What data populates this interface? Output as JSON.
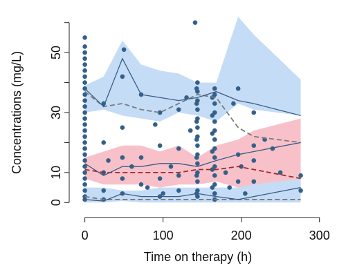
{
  "chart_data": {
    "type": "vpc",
    "x_label": "Time on therapy (h)",
    "y_label": "Concentrations (mg/L)",
    "xlim": [
      -20,
      310
    ],
    "ylim": [
      -5,
      65
    ],
    "xticks": [
      0,
      100,
      200,
      300
    ],
    "yticks": [
      0,
      10,
      30,
      50
    ],
    "yminorticks": [
      20,
      40,
      60
    ],
    "x": [
      0,
      24,
      48,
      72,
      96,
      120,
      144,
      168,
      196,
      216,
      276
    ],
    "bands": [
      {
        "color": "#c5dcf6",
        "upper": [
          39,
          42,
          54,
          46,
          44,
          43,
          40,
          40,
          62,
          56,
          41
        ],
        "lower": [
          30,
          31,
          29,
          28,
          27,
          30,
          29,
          27,
          33,
          31,
          29
        ]
      },
      {
        "color": "#f8c1ca",
        "upper": [
          15,
          17,
          19,
          19,
          17,
          19,
          15,
          19,
          21,
          24,
          28
        ],
        "lower": [
          8,
          6,
          6,
          6,
          5,
          6,
          6,
          7,
          5,
          4,
          3
        ]
      },
      {
        "color": "#c5dcf6",
        "upper": [
          5,
          5,
          4,
          4,
          5,
          5,
          5,
          5,
          5,
          6,
          8
        ],
        "lower": [
          0,
          0,
          0.5,
          0,
          0,
          0,
          0,
          0,
          0,
          0,
          0
        ]
      }
    ],
    "series": [
      {
        "color": "#7a7a7a",
        "dashed": true,
        "values": [
          37,
          32,
          33,
          31,
          30,
          33,
          36,
          35,
          25,
          22,
          20
        ]
      },
      {
        "color": "#9e2a2b",
        "dashed": true,
        "values": [
          11,
          10,
          10,
          10,
          10,
          10,
          11,
          11,
          12,
          11,
          8
        ]
      },
      {
        "color": "#7a7a7a",
        "dashed": true,
        "values": [
          2,
          1,
          1,
          1,
          1,
          1,
          1,
          1,
          1,
          1,
          1
        ]
      },
      {
        "color": "#3a5d84",
        "dashed": false,
        "values": [
          38,
          32,
          48,
          36,
          35,
          34,
          35,
          37,
          34,
          33,
          29
        ]
      },
      {
        "color": "#3a5d84",
        "dashed": false,
        "values": [
          13,
          9,
          12,
          12,
          13,
          13,
          12,
          14,
          16,
          17,
          20
        ]
      },
      {
        "color": "#3a5d84",
        "dashed": false,
        "values": [
          1,
          0.5,
          3,
          2,
          2,
          2,
          3,
          2,
          1,
          2,
          5
        ]
      }
    ],
    "points": {
      "color": "#33608a",
      "x": [
        0,
        0,
        0,
        0,
        0,
        0,
        0,
        0,
        0,
        0,
        0,
        0,
        0,
        0,
        0,
        0,
        0,
        0,
        0,
        0,
        0,
        0,
        0,
        0,
        0,
        0,
        0,
        0,
        141,
        144,
        144,
        144,
        144,
        144,
        144,
        144,
        144,
        144,
        144,
        144,
        144,
        144,
        144,
        143,
        143,
        143,
        143,
        143,
        143,
        143,
        166,
        166,
        166,
        166,
        166,
        166,
        166,
        166,
        166,
        166,
        166,
        166,
        166,
        166,
        163,
        163,
        163,
        163,
        163,
        163,
        24,
        24,
        24,
        24,
        24,
        30,
        48,
        48,
        48,
        48,
        48,
        50,
        72,
        72,
        72,
        96,
        96,
        96,
        96,
        110,
        120,
        120,
        120,
        120,
        130,
        190,
        196,
        196,
        196,
        200,
        216,
        216,
        216,
        216,
        240,
        250,
        276,
        276,
        60,
        80,
        90,
        100,
        135,
        180,
        185,
        205,
        230
      ],
      "y": [
        55,
        52,
        50,
        48,
        46,
        44,
        42,
        40,
        38,
        36,
        34,
        32,
        30,
        28,
        26,
        24,
        22,
        20,
        18,
        16,
        14,
        12,
        10,
        8,
        6,
        4,
        2,
        1,
        60,
        40,
        37,
        34,
        31,
        28,
        25,
        22,
        19,
        16,
        13,
        10,
        7,
        4,
        2,
        38,
        33,
        27,
        21,
        15,
        9,
        3,
        38,
        36,
        33,
        30,
        27,
        24,
        21,
        18,
        15,
        12,
        9,
        6,
        3,
        1,
        35,
        29,
        23,
        17,
        11,
        5,
        33,
        20,
        10,
        4,
        1,
        14,
        42,
        25,
        15,
        8,
        3,
        51,
        36,
        15,
        6,
        30,
        19,
        8,
        2,
        12,
        31,
        18,
        9,
        4,
        35,
        33,
        38,
        16,
        7,
        12,
        30,
        19,
        14,
        7,
        18,
        10,
        9,
        4,
        12,
        5,
        26,
        3,
        24,
        10,
        5,
        3,
        21
      ]
    }
  }
}
